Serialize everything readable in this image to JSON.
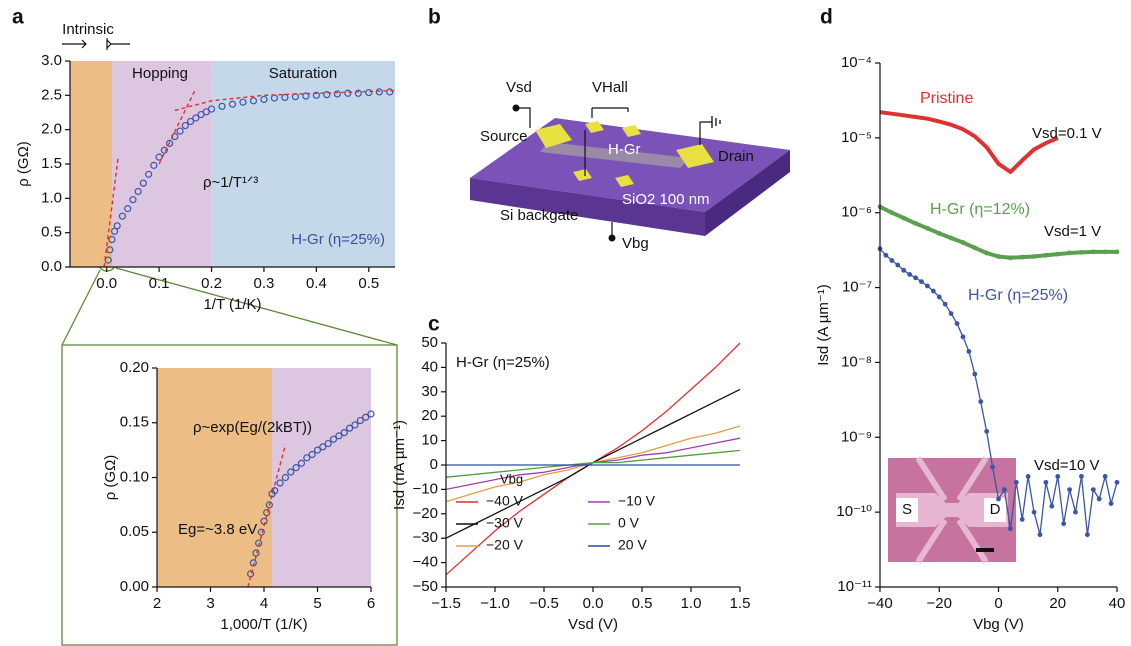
{
  "panels": [
    "a",
    "b",
    "c",
    "d"
  ],
  "diagram": {
    "vsd": "Vsd",
    "vhall": "VHall",
    "source": "Source",
    "hgr": "H-Gr",
    "drain": "Drain",
    "oxide": "SiO2 100 nm",
    "backgate": "Si backgate",
    "vbg": "Vbg"
  },
  "chart_data": [
    {
      "type": "scatter",
      "x_label": "1/T (1/K)",
      "y_label": "ρ (GΩ)",
      "xlim": [
        -0.07,
        0.55
      ],
      "ylim": [
        0,
        3
      ],
      "xticks": [
        {
          "value": 0,
          "label": "0.0"
        },
        0.1,
        0.2,
        0.3,
        0.4,
        0.5
      ],
      "yticks": [
        {
          "value": 0,
          "label": "0.0"
        },
        0.5,
        {
          "value": 1,
          "label": "1.0"
        },
        1.5,
        {
          "value": 2,
          "label": "2.0"
        },
        2.5,
        {
          "value": 3,
          "label": "3.0"
        }
      ],
      "regions": [
        {
          "from": -0.07,
          "to": 0.01,
          "color": "#ecbd85"
        },
        {
          "from": 0.01,
          "to": 0.2,
          "color": "#dcc6e0"
        },
        {
          "from": 0.2,
          "to": 0.55,
          "color": "#c4d8ea"
        }
      ],
      "annotations": [
        "Intrinsic",
        "Hopping",
        "Saturation",
        "ρ~1/T¹ᐟ³",
        "H-Gr (η=25%)"
      ],
      "series": [
        {
          "style": "markers",
          "color": "#3b55a8",
          "x": [
            0.003,
            0.006,
            0.01,
            0.015,
            0.02,
            0.03,
            0.04,
            0.05,
            0.06,
            0.07,
            0.08,
            0.09,
            0.1,
            0.11,
            0.12,
            0.13,
            0.14,
            0.15,
            0.16,
            0.17,
            0.18,
            0.19,
            0.2,
            0.22,
            0.24,
            0.26,
            0.28,
            0.3,
            0.32,
            0.34,
            0.36,
            0.38,
            0.4,
            0.42,
            0.44,
            0.46,
            0.48,
            0.5,
            0.52,
            0.54
          ],
          "values": [
            0.1,
            0.25,
            0.4,
            0.52,
            0.6,
            0.74,
            0.85,
            0.98,
            1.1,
            1.22,
            1.35,
            1.48,
            1.6,
            1.7,
            1.8,
            1.9,
            1.98,
            2.06,
            2.12,
            2.17,
            2.22,
            2.26,
            2.3,
            2.34,
            2.37,
            2.4,
            2.42,
            2.44,
            2.46,
            2.47,
            2.48,
            2.49,
            2.5,
            2.51,
            2.52,
            2.53,
            2.53,
            2.54,
            2.55,
            2.55
          ]
        },
        {
          "style": "dashed",
          "color": "#e03030",
          "x": [
            -0.005,
            0.022
          ],
          "values": [
            0.0,
            1.6
          ]
        },
        {
          "style": "dashed",
          "color": "#e03030",
          "x": [
            0.1,
            0.17
          ],
          "values": [
            1.5,
            2.6
          ]
        },
        {
          "style": "dashed",
          "color": "#e03030",
          "x": [
            0.13,
            0.2,
            0.3,
            0.4,
            0.55
          ],
          "values": [
            2.28,
            2.42,
            2.5,
            2.53,
            2.57
          ]
        }
      ]
    },
    {
      "type": "scatter",
      "x_label": "1,000/T (1/K)",
      "y_label": "ρ (GΩ)",
      "xlim": [
        2,
        6
      ],
      "ylim": [
        0,
        0.2
      ],
      "xticks": [
        2,
        3,
        4,
        5,
        6
      ],
      "yticks": [
        {
          "value": 0,
          "label": "0.00"
        },
        0.05,
        {
          "value": 0.1,
          "label": "0.10"
        },
        0.15,
        {
          "value": 0.2,
          "label": "0.20"
        }
      ],
      "regions": [
        {
          "from": 2,
          "to": 4.15,
          "color": "#ecbd85"
        },
        {
          "from": 4.15,
          "to": 6,
          "color": "#dcc6e0"
        }
      ],
      "annotations": [
        "ρ~exp(Eg/(2kBT))",
        "Eg=~3.8 eV"
      ],
      "series": [
        {
          "style": "markers",
          "color": "#3b55a8",
          "x": [
            3.75,
            3.8,
            3.85,
            3.9,
            3.95,
            4.0,
            4.05,
            4.1,
            4.15,
            4.2,
            4.3,
            4.4,
            4.5,
            4.6,
            4.7,
            4.8,
            4.9,
            5.0,
            5.1,
            5.2,
            5.3,
            5.4,
            5.5,
            5.6,
            5.7,
            5.8,
            5.9,
            6.0
          ],
          "values": [
            0.012,
            0.022,
            0.031,
            0.04,
            0.05,
            0.06,
            0.068,
            0.075,
            0.085,
            0.088,
            0.095,
            0.1,
            0.105,
            0.109,
            0.113,
            0.118,
            0.121,
            0.125,
            0.128,
            0.131,
            0.135,
            0.138,
            0.141,
            0.145,
            0.148,
            0.152,
            0.155,
            0.158
          ]
        },
        {
          "style": "dashed",
          "color": "#e03030",
          "x": [
            3.7,
            4.4
          ],
          "values": [
            0.0,
            0.13
          ]
        }
      ]
    },
    {
      "type": "line",
      "x_label": "Vsd (V)",
      "y_label": "Isd (nA µm⁻¹)",
      "xlim": [
        -1.5,
        1.5
      ],
      "ylim": [
        -50,
        50
      ],
      "xticks": [
        {
          "value": -1.5,
          "label": "−1.5"
        },
        {
          "value": -1,
          "label": "−1.0"
        },
        {
          "value": -0.5,
          "label": "−0.5"
        },
        {
          "value": 0,
          "label": "0.0"
        },
        0.5,
        {
          "value": 1,
          "label": "1.0"
        },
        1.5
      ],
      "yticks": [
        {
          "value": -50,
          "label": "−50"
        },
        {
          "value": -40,
          "label": "−40"
        },
        {
          "value": -30,
          "label": "−30"
        },
        {
          "value": -20,
          "label": "−20"
        },
        {
          "value": -10,
          "label": "−10"
        },
        0,
        10,
        20,
        30,
        40,
        50
      ],
      "annotations": [
        "H-Gr (η=25%)"
      ],
      "legend_title": "Vbg",
      "x": [
        -1.5,
        -1.25,
        -1.0,
        -0.75,
        -0.5,
        -0.25,
        0,
        0.25,
        0.5,
        0.75,
        1.0,
        1.25,
        1.5
      ],
      "series": [
        {
          "name": "−40 V",
          "style": "line",
          "color": "#e03030",
          "values": [
            -45,
            -36,
            -27,
            -19,
            -12,
            -5,
            1,
            7,
            14,
            22,
            31,
            40,
            50
          ]
        },
        {
          "name": "−30 V",
          "style": "line",
          "color": "#111111",
          "values": [
            -30,
            -25,
            -20,
            -15,
            -10,
            -5,
            1,
            6,
            11,
            16,
            21,
            26,
            31
          ]
        },
        {
          "name": "−20 V",
          "style": "line",
          "color": "#e0a040",
          "values": [
            -15,
            -12,
            -9,
            -7,
            -4,
            -2,
            1,
            3,
            5,
            8,
            11,
            13,
            16
          ]
        },
        {
          "name": "−10 V",
          "style": "line",
          "color": "#a040b0",
          "values": [
            -10,
            -8,
            -6,
            -4,
            -3,
            -1,
            1,
            2,
            4,
            5,
            7,
            9,
            11
          ]
        },
        {
          "name": "0 V",
          "style": "line",
          "color": "#50a040",
          "values": [
            -5,
            -4,
            -3,
            -2,
            -1,
            0,
            1,
            1,
            2,
            3,
            4,
            5,
            6
          ]
        },
        {
          "name": "20 V",
          "style": "line",
          "color": "#2a4aa8",
          "values": [
            0,
            0,
            0,
            0,
            0,
            0,
            0,
            0,
            0,
            0,
            0,
            0,
            0
          ]
        }
      ]
    },
    {
      "type": "line",
      "yscale": "log",
      "x_label": "Vbg (V)",
      "y_label": "Isd (A µm⁻¹)",
      "xlim": [
        -40,
        40
      ],
      "ylim": [
        1e-11,
        0.0001
      ],
      "xticks": [
        {
          "value": -40,
          "label": "−40"
        },
        {
          "value": -20,
          "label": "−20"
        },
        0,
        20,
        40
      ],
      "yticks": [
        {
          "value": 1e-11,
          "label": "10⁻¹¹"
        },
        {
          "value": 1e-10,
          "label": "10⁻¹⁰"
        },
        {
          "value": 1e-09,
          "label": "10⁻⁹"
        },
        {
          "value": 1e-08,
          "label": "10⁻⁸"
        },
        {
          "value": 1e-07,
          "label": "10⁻⁷"
        },
        {
          "value": 1e-06,
          "label": "10⁻⁶"
        },
        {
          "value": 1e-05,
          "label": "10⁻⁵"
        },
        {
          "value": 0.0001,
          "label": "10⁻⁴"
        }
      ],
      "annotations": [
        "Vsd=0.1 V",
        "Vsd=1 V",
        "Vsd=10 V",
        "S",
        "D"
      ],
      "series": [
        {
          "name": "Pristine",
          "style": "thick",
          "color": "#e03030",
          "x": [
            -40,
            -36,
            -32,
            -28,
            -24,
            -20,
            -16,
            -12,
            -8,
            -4,
            0,
            4,
            8,
            12,
            16,
            20
          ],
          "values": [
            2.2e-05,
            2.1e-05,
            2e-05,
            1.9e-05,
            1.8e-05,
            1.65e-05,
            1.5e-05,
            1.3e-05,
            1.05e-05,
            7.5e-06,
            4.5e-06,
            3.5e-06,
            5e-06,
            7e-06,
            8.5e-06,
            1e-05
          ]
        },
        {
          "name": "H-Gr (η=12%)",
          "style": "thick",
          "color": "#5aa050",
          "x": [
            -40,
            -36,
            -32,
            -28,
            -24,
            -20,
            -16,
            -12,
            -8,
            -4,
            0,
            4,
            8,
            12,
            16,
            20,
            24,
            28,
            32,
            36,
            40
          ],
          "values": [
            1.2e-06,
            1e-06,
            8.5e-07,
            7.2e-07,
            6.2e-07,
            5.3e-07,
            4.6e-07,
            4e-07,
            3.4e-07,
            2.9e-07,
            2.6e-07,
            2.5e-07,
            2.55e-07,
            2.6e-07,
            2.7e-07,
            2.8e-07,
            2.9e-07,
            2.95e-07,
            3e-07,
            3e-07,
            3e-07
          ]
        },
        {
          "name": "H-Gr (η=25%)",
          "style": "line-markers",
          "color": "#3b55a8",
          "x": [
            -40,
            -38,
            -36,
            -34,
            -32,
            -30,
            -28,
            -26,
            -24,
            -22,
            -20,
            -18,
            -16,
            -14,
            -12,
            -10,
            -8,
            -6,
            -4,
            -2,
            0,
            2,
            4,
            6,
            8,
            10,
            12,
            14,
            16,
            18,
            20,
            22,
            24,
            26,
            28,
            30,
            32,
            34,
            36,
            38,
            40
          ],
          "values": [
            3.3e-07,
            2.7e-07,
            2.3e-07,
            2e-07,
            1.7e-07,
            1.5e-07,
            1.35e-07,
            1.2e-07,
            1.05e-07,
            9e-08,
            7.5e-08,
            6e-08,
            4.5e-08,
            3.3e-08,
            2.2e-08,
            1.4e-08,
            7e-09,
            3e-09,
            1.2e-09,
            4e-10,
            1.5e-10,
            2e-10,
            6e-11,
            2.5e-10,
            8e-11,
            3e-10,
            1e-10,
            5e-11,
            2.5e-10,
            1.2e-10,
            3e-10,
            7e-11,
            2e-10,
            1e-10,
            3e-10,
            5e-11,
            2e-10,
            1.5e-10,
            3e-10,
            1.3e-10,
            2.5e-10
          ]
        }
      ]
    }
  ]
}
